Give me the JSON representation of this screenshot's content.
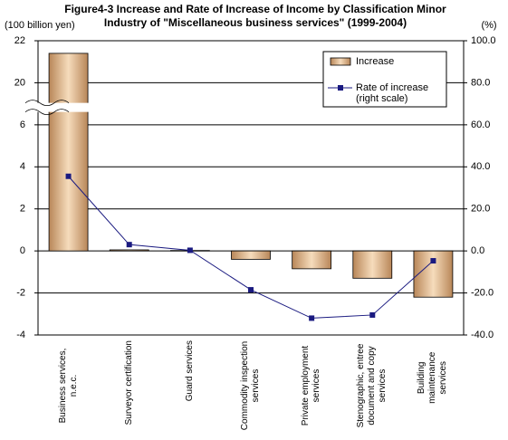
{
  "chart_data": {
    "type": "bar",
    "title": "Figure4-3   Increase and Rate of Increase of Income by Classification Minor Industry of \"Miscellaneous business services\" (1999-2004)",
    "y_label": "(100 billion yen)",
    "y2_label": "(%)",
    "categories": [
      "Business services, n.e.c.",
      "Surveyor certification",
      "Guard services",
      "Commodity inspection services",
      "Private employment services",
      "Stenographic, entree document and copy services",
      "Building maintenance services"
    ],
    "series": [
      {
        "name": "Increase",
        "type": "bar",
        "color": "#e0b48a",
        "values": [
          21.4,
          0.05,
          0.02,
          -0.4,
          -0.85,
          -1.3,
          -2.2
        ]
      },
      {
        "name": "Rate of increase (right scale)",
        "type": "line",
        "axis": "y2",
        "color": "#1a1a80",
        "values": [
          35.5,
          3,
          0.3,
          -18.5,
          -32,
          -30.5,
          -4.7
        ]
      }
    ],
    "ylim": [
      -4,
      22
    ],
    "ybreak": [
      8,
      20
    ],
    "yticks": [
      -4,
      -2,
      0,
      2,
      4,
      6,
      20,
      22
    ],
    "y2lim": [
      -40,
      100
    ],
    "y2ticks": [
      {
        "value": -40,
        "label": "-40.0"
      },
      {
        "value": -20,
        "label": "-20.0"
      },
      {
        "value": 0,
        "label": "0.0"
      },
      {
        "value": 20,
        "label": "20.0"
      },
      {
        "value": 40,
        "label": "40.0"
      },
      {
        "value": 60,
        "label": "60.0"
      },
      {
        "value": 80,
        "label": "80.0"
      },
      {
        "value": 100,
        "label": "100.0"
      }
    ],
    "grid": true,
    "legend": "top-right"
  }
}
